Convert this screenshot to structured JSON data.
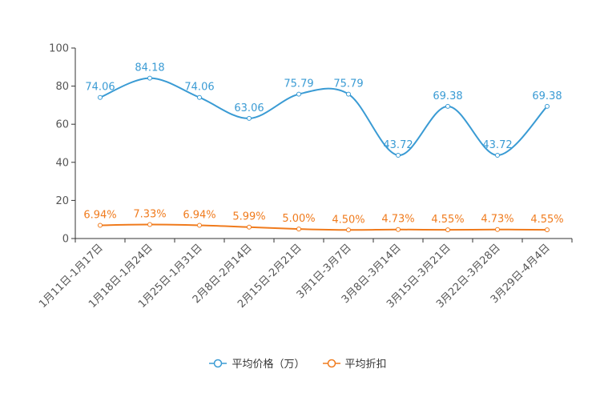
{
  "chart_data": {
    "type": "line",
    "title": "",
    "xlabel": "",
    "ylabel": "",
    "ylim": [
      0,
      100
    ],
    "yticks": [
      0,
      20,
      40,
      60,
      80,
      100
    ],
    "categories": [
      "1月11日-1月17日",
      "1月18日-1月24日",
      "1月25日-1月31日",
      "2月8日-2月14日",
      "2月15日-2月21日",
      "3月1日-3月7日",
      "3月8日-3月14日",
      "3月15日-3月21日",
      "3月22日-3月28日",
      "3月29日-4月4日"
    ],
    "series": [
      {
        "name": "平均价格（万）",
        "color": "#3a9bd4",
        "values": [
          74.06,
          84.18,
          74.06,
          63.06,
          75.79,
          75.79,
          43.72,
          69.38,
          43.72,
          69.38
        ],
        "labels": [
          "74.06",
          "84.18",
          "74.06",
          "63.06",
          "75.79",
          "75.79",
          "43.72",
          "69.38",
          "43.72",
          "69.38"
        ]
      },
      {
        "name": "平均折扣",
        "color": "#f07b1d",
        "values": [
          6.94,
          7.33,
          6.94,
          5.99,
          5.0,
          4.5,
          4.73,
          4.55,
          4.73,
          4.55
        ],
        "labels": [
          "6.94%",
          "7.33%",
          "6.94%",
          "5.99%",
          "5.00%",
          "4.50%",
          "4.73%",
          "4.55%",
          "4.73%",
          "4.55%"
        ]
      }
    ],
    "legend_position": "bottom-center"
  }
}
